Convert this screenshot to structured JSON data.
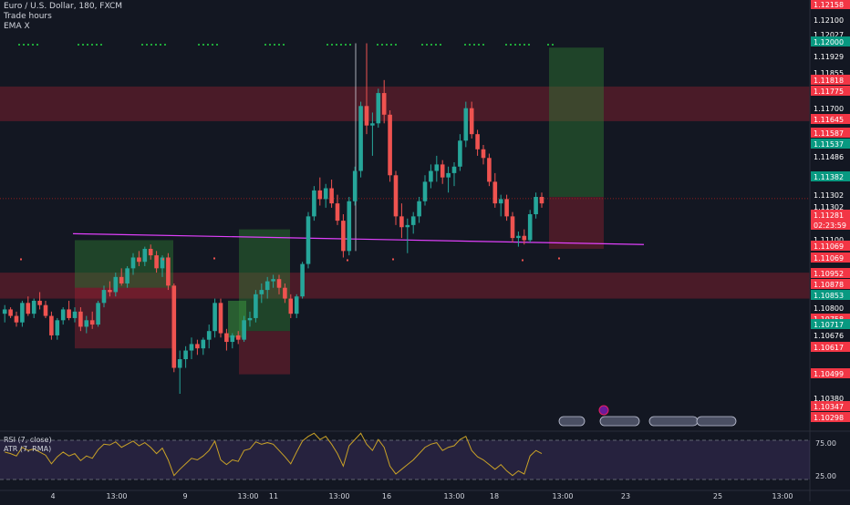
{
  "header": {
    "symbol_line": "Euro / U.S. Dollar, 180, FXCM",
    "indicators": [
      "Trade hours",
      "EMA X"
    ]
  },
  "lower_pane": {
    "rsi_label": "RSI (7, close)",
    "atr_label": "ATR (7, RMA)",
    "levels": [
      "75.00",
      "25.00"
    ]
  },
  "chart_data": {
    "type": "candlestick",
    "symbol": "EURUSD",
    "timeframe": "180",
    "ylim": [
      1.1024,
      1.1222
    ],
    "price_labels": [
      {
        "text": "1.12158",
        "color": "red"
      },
      {
        "text": "1.12100",
        "color": "dark"
      },
      {
        "text": "1.12027",
        "color": "dark"
      },
      {
        "text": "1.12000",
        "color": "green"
      },
      {
        "text": "1.11929",
        "color": "dark"
      },
      {
        "text": "1.11855",
        "color": "dark"
      },
      {
        "text": "1.11818",
        "color": "red"
      },
      {
        "text": "1.11775",
        "color": "red"
      },
      {
        "text": "1.11700",
        "color": "dark"
      },
      {
        "text": "1.11645",
        "color": "red"
      },
      {
        "text": "1.11587",
        "color": "red"
      },
      {
        "text": "1.11537",
        "color": "green"
      },
      {
        "text": "1.11486",
        "color": "dark"
      },
      {
        "text": "1.11382",
        "color": "green"
      },
      {
        "text": "1.11302",
        "color": "dark"
      },
      {
        "text": "1.11302",
        "color": "dark"
      },
      {
        "text": "1.11281",
        "color": "red"
      },
      {
        "text": "02:23:59",
        "color": "red"
      },
      {
        "text": "1.11100",
        "color": "dark"
      },
      {
        "text": "1.11069",
        "color": "red"
      },
      {
        "text": "1.11069",
        "color": "red"
      },
      {
        "text": "1.10952",
        "color": "red"
      },
      {
        "text": "1.10878",
        "color": "red"
      },
      {
        "text": "1.10853",
        "color": "green"
      },
      {
        "text": "1.10800",
        "color": "dark"
      },
      {
        "text": "1.10758",
        "color": "red"
      },
      {
        "text": "1.10717",
        "color": "green"
      },
      {
        "text": "1.10676",
        "color": "dark"
      },
      {
        "text": "1.10617",
        "color": "red"
      },
      {
        "text": "1.10499",
        "color": "red"
      },
      {
        "text": "1.10380",
        "color": "dark"
      },
      {
        "text": "1.10347",
        "color": "red"
      },
      {
        "text": "1.10298",
        "color": "red"
      }
    ],
    "rsi_axis_labels": [
      "75.00",
      "25.00"
    ],
    "x_tick_labels": [
      "4",
      "13:00",
      "9",
      "13:00",
      "11",
      "13:00",
      "16",
      "13:00",
      "18",
      "13:00",
      "23",
      "25",
      "13:00"
    ],
    "candles": [
      [
        1.1077,
        1.1081,
        1.1073,
        1.1079
      ],
      [
        1.1079,
        1.108,
        1.1075,
        1.1076
      ],
      [
        1.1076,
        1.1078,
        1.1071,
        1.1073
      ],
      [
        1.1073,
        1.1083,
        1.1071,
        1.1082
      ],
      [
        1.1082,
        1.1085,
        1.1076,
        1.1077
      ],
      [
        1.1077,
        1.1084,
        1.1075,
        1.1083
      ],
      [
        1.1083,
        1.1087,
        1.1079,
        1.1081
      ],
      [
        1.1081,
        1.1083,
        1.1075,
        1.1076
      ],
      [
        1.1076,
        1.1078,
        1.1065,
        1.1067
      ],
      [
        1.1067,
        1.1075,
        1.1065,
        1.1074
      ],
      [
        1.1074,
        1.108,
        1.1072,
        1.1079
      ],
      [
        1.1079,
        1.1083,
        1.1074,
        1.1075
      ],
      [
        1.1075,
        1.108,
        1.1073,
        1.1078
      ],
      [
        1.1078,
        1.108,
        1.1069,
        1.1071
      ],
      [
        1.1071,
        1.1076,
        1.1068,
        1.1074
      ],
      [
        1.1074,
        1.1078,
        1.107,
        1.1072
      ],
      [
        1.1072,
        1.1083,
        1.1071,
        1.1082
      ],
      [
        1.1082,
        1.109,
        1.108,
        1.1088
      ],
      [
        1.1088,
        1.1092,
        1.1085,
        1.1087
      ],
      [
        1.1087,
        1.1096,
        1.1085,
        1.1094
      ],
      [
        1.1094,
        1.1098,
        1.109,
        1.1091
      ],
      [
        1.1091,
        1.1099,
        1.1089,
        1.1098
      ],
      [
        1.1098,
        1.1105,
        1.1095,
        1.1103
      ],
      [
        1.1103,
        1.1106,
        1.1099,
        1.1101
      ],
      [
        1.1101,
        1.1108,
        1.1099,
        1.1107
      ],
      [
        1.1107,
        1.1109,
        1.1102,
        1.1104
      ],
      [
        1.1104,
        1.1106,
        1.1096,
        1.1098
      ],
      [
        1.1098,
        1.1104,
        1.1094,
        1.1103
      ],
      [
        1.1103,
        1.1105,
        1.1088,
        1.109
      ],
      [
        1.109,
        1.1091,
        1.105,
        1.1052
      ],
      [
        1.1052,
        1.106,
        1.104,
        1.1056
      ],
      [
        1.1056,
        1.1062,
        1.1052,
        1.106
      ],
      [
        1.106,
        1.1066,
        1.1056,
        1.1063
      ],
      [
        1.1063,
        1.1065,
        1.1058,
        1.1061
      ],
      [
        1.1061,
        1.1066,
        1.1058,
        1.1065
      ],
      [
        1.1065,
        1.1072,
        1.1061,
        1.1069
      ],
      [
        1.1069,
        1.1084,
        1.1066,
        1.1082
      ],
      [
        1.1082,
        1.1084,
        1.1066,
        1.1068
      ],
      [
        1.1068,
        1.107,
        1.106,
        1.1064
      ],
      [
        1.1064,
        1.1068,
        1.1061,
        1.1067
      ],
      [
        1.1067,
        1.1069,
        1.1063,
        1.1065
      ],
      [
        1.1065,
        1.1076,
        1.1064,
        1.1074
      ],
      [
        1.1074,
        1.1078,
        1.1071,
        1.1075
      ],
      [
        1.1075,
        1.1088,
        1.1073,
        1.1086
      ],
      [
        1.1086,
        1.1091,
        1.1082,
        1.1088
      ],
      [
        1.1088,
        1.1094,
        1.1084,
        1.1092
      ],
      [
        1.1092,
        1.1095,
        1.1089,
        1.1093
      ],
      [
        1.1093,
        1.1095,
        1.1086,
        1.1089
      ],
      [
        1.1089,
        1.1091,
        1.1082,
        1.1084
      ],
      [
        1.1084,
        1.1086,
        1.1075,
        1.1077
      ],
      [
        1.1077,
        1.1086,
        1.1075,
        1.1085
      ],
      [
        1.1085,
        1.1101,
        1.1084,
        1.11
      ],
      [
        1.11,
        1.1124,
        1.1098,
        1.1122
      ],
      [
        1.1122,
        1.1136,
        1.112,
        1.1134
      ],
      [
        1.1134,
        1.114,
        1.1127,
        1.113
      ],
      [
        1.113,
        1.1137,
        1.1126,
        1.1135
      ],
      [
        1.1135,
        1.1139,
        1.1126,
        1.1128
      ],
      [
        1.1128,
        1.1132,
        1.1118,
        1.112
      ],
      [
        1.112,
        1.1123,
        1.1103,
        1.1106
      ],
      [
        1.1106,
        1.1131,
        1.1104,
        1.1129
      ],
      [
        1.1129,
        1.1145,
        1.1127,
        1.1143
      ],
      [
        1.1143,
        1.1175,
        1.114,
        1.1173
      ],
      [
        1.1173,
        1.1202,
        1.116,
        1.1164
      ],
      [
        1.1164,
        1.117,
        1.115,
        1.1165
      ],
      [
        1.1165,
        1.1181,
        1.1163,
        1.1179
      ],
      [
        1.1179,
        1.1185,
        1.1165,
        1.1169
      ],
      [
        1.1169,
        1.1171,
        1.1138,
        1.1141
      ],
      [
        1.1141,
        1.1143,
        1.1118,
        1.1122
      ],
      [
        1.1122,
        1.1128,
        1.1112,
        1.1117
      ],
      [
        1.1117,
        1.1121,
        1.1105,
        1.1118
      ],
      [
        1.1118,
        1.1124,
        1.1114,
        1.1122
      ],
      [
        1.1122,
        1.1131,
        1.1119,
        1.1129
      ],
      [
        1.1129,
        1.1141,
        1.1127,
        1.1138
      ],
      [
        1.1138,
        1.1146,
        1.1135,
        1.1143
      ],
      [
        1.1143,
        1.115,
        1.1138,
        1.1146
      ],
      [
        1.1146,
        1.1148,
        1.1137,
        1.114
      ],
      [
        1.114,
        1.1145,
        1.1133,
        1.1142
      ],
      [
        1.1142,
        1.1147,
        1.1136,
        1.1145
      ],
      [
        1.1145,
        1.116,
        1.1143,
        1.1157
      ],
      [
        1.1157,
        1.1175,
        1.1154,
        1.1172
      ],
      [
        1.1172,
        1.1175,
        1.1158,
        1.116
      ],
      [
        1.116,
        1.1162,
        1.115,
        1.1153
      ],
      [
        1.1153,
        1.1155,
        1.1146,
        1.1149
      ],
      [
        1.1149,
        1.1151,
        1.1136,
        1.1138
      ],
      [
        1.1138,
        1.1142,
        1.1126,
        1.1128
      ],
      [
        1.1128,
        1.1132,
        1.1122,
        1.113
      ],
      [
        1.113,
        1.1132,
        1.112,
        1.1122
      ],
      [
        1.1122,
        1.1124,
        1.111,
        1.1112
      ],
      [
        1.1112,
        1.1115,
        1.1108,
        1.1113
      ],
      [
        1.1113,
        1.1116,
        1.1109,
        1.1111
      ],
      [
        1.1111,
        1.1125,
        1.111,
        1.1123
      ],
      [
        1.1123,
        1.1133,
        1.1121,
        1.1131
      ],
      [
        1.1131,
        1.1133,
        1.1126,
        1.1128
      ]
    ],
    "rsi": [
      60,
      58,
      55,
      66,
      62,
      64,
      60,
      56,
      45,
      54,
      60,
      55,
      58,
      49,
      55,
      52,
      63,
      70,
      69,
      73,
      66,
      70,
      74,
      68,
      72,
      66,
      58,
      65,
      50,
      30,
      38,
      45,
      52,
      50,
      55,
      62,
      74,
      50,
      44,
      50,
      48,
      62,
      64,
      73,
      70,
      72,
      70,
      62,
      54,
      45,
      60,
      74,
      80,
      84,
      76,
      80,
      70,
      58,
      42,
      68,
      76,
      84,
      70,
      62,
      76,
      66,
      42,
      32,
      38,
      44,
      50,
      58,
      66,
      70,
      72,
      62,
      66,
      68,
      76,
      80,
      62,
      54,
      50,
      44,
      38,
      44,
      36,
      30,
      36,
      32,
      55,
      62,
      58
    ]
  }
}
